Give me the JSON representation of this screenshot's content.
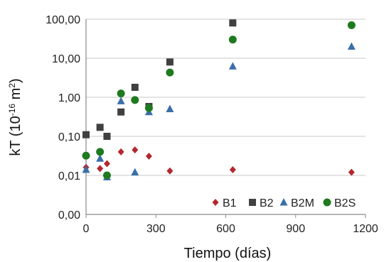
{
  "chart_data": {
    "type": "scatter",
    "xlabel": "Tiempo (días)",
    "ylabel": {
      "prefix": "kT (10",
      "exp1": "-16",
      "mid": " m",
      "exp2": "2",
      "suffix": ")"
    },
    "xlim": [
      0,
      1200
    ],
    "x_ticks": [
      0,
      300,
      600,
      900,
      1200
    ],
    "x_tick_labels": [
      "0",
      "300",
      "600",
      "900",
      "1200"
    ],
    "y_scale": "log",
    "y_ticks": [
      0.001,
      0.01,
      0.1,
      1,
      10,
      100
    ],
    "y_tick_labels": [
      "0,00",
      "0,01",
      "0,10",
      "1,00",
      "10,00",
      "100,00"
    ],
    "grid": "horizontal",
    "legend_position": "bottom-right",
    "series": [
      {
        "name": "B1",
        "marker": "diamond",
        "color": "#b5272d",
        "points": [
          [
            0,
            0.016
          ],
          [
            60,
            0.015
          ],
          [
            90,
            0.02
          ],
          [
            150,
            0.04
          ],
          [
            210,
            0.045
          ],
          [
            270,
            0.031
          ],
          [
            360,
            0.013
          ],
          [
            630,
            0.014
          ],
          [
            1140,
            0.012
          ]
        ]
      },
      {
        "name": "B2",
        "marker": "square",
        "color": "#404040",
        "points": [
          [
            0,
            0.11
          ],
          [
            60,
            0.17
          ],
          [
            90,
            0.1
          ],
          [
            150,
            0.42
          ],
          [
            210,
            1.8
          ],
          [
            270,
            0.58
          ],
          [
            360,
            8.0
          ],
          [
            630,
            80.0
          ]
        ]
      },
      {
        "name": "B2M",
        "marker": "triangle",
        "color": "#3a6fa8",
        "points": [
          [
            0,
            0.014
          ],
          [
            60,
            0.027
          ],
          [
            90,
            0.009
          ],
          [
            150,
            0.8
          ],
          [
            210,
            0.012
          ],
          [
            270,
            0.42
          ],
          [
            360,
            0.5
          ],
          [
            630,
            6.2
          ],
          [
            1140,
            20.0
          ]
        ]
      },
      {
        "name": "B2S",
        "marker": "circle",
        "color": "#1e7a1e",
        "points": [
          [
            0,
            0.032
          ],
          [
            60,
            0.04
          ],
          [
            90,
            0.01
          ],
          [
            150,
            1.25
          ],
          [
            210,
            0.85
          ],
          [
            270,
            0.53
          ],
          [
            360,
            4.3
          ],
          [
            630,
            30.0
          ],
          [
            1140,
            70.0
          ]
        ]
      }
    ]
  }
}
